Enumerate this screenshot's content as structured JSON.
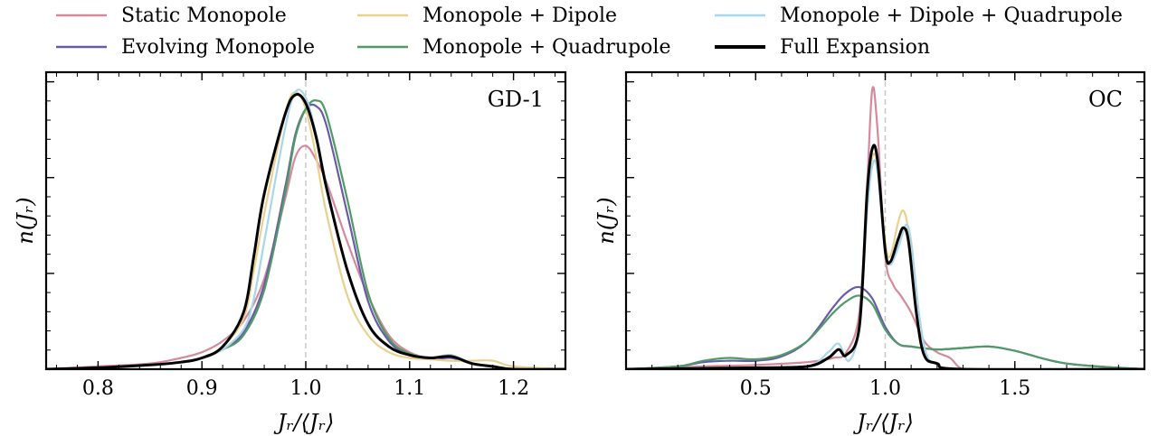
{
  "colors": {
    "static_monopole": "#d48a9b",
    "evolving_monopole": "#6a5aaa",
    "monopole_dipole": "#e8d08e",
    "monopole_quadrupole": "#4f9a66",
    "monopole_dipole_quadrupole": "#a8d6ea",
    "full_expansion": "#000000",
    "reference_line": "#c8c8c8"
  },
  "legend": [
    "Static Monopole",
    "Evolving Monopole",
    "Monopole + Dipole",
    "Monopole + Quadrupole",
    "Monopole + Dipole + Quadrupole",
    "Full Expansion"
  ],
  "chart_data": [
    {
      "type": "line",
      "panel_label": "GD-1",
      "xlabel": "J_r/⟨J_r⟩",
      "ylabel": "n(J_r)",
      "xlim": [
        0.75,
        1.25
      ],
      "ylim": [
        0,
        1.05
      ],
      "xticks": [
        0.8,
        0.9,
        1.0,
        1.1,
        1.2
      ],
      "xtick_labels": [
        "0.8",
        "0.9",
        "1.0",
        "1.1",
        "1.2"
      ],
      "reference_x": 1.0,
      "series": [
        {
          "name": "Static Monopole",
          "x": [
            0.75,
            0.8,
            0.85,
            0.88,
            0.9,
            0.92,
            0.94,
            0.96,
            0.98,
            0.99,
            1.0,
            1.01,
            1.02,
            1.04,
            1.06,
            1.08,
            1.1,
            1.12,
            1.14,
            1.16,
            1.18,
            1.2,
            1.25
          ],
          "y": [
            0.0,
            0.01,
            0.02,
            0.04,
            0.06,
            0.1,
            0.17,
            0.32,
            0.6,
            0.75,
            0.79,
            0.74,
            0.66,
            0.45,
            0.26,
            0.12,
            0.06,
            0.04,
            0.05,
            0.02,
            0.01,
            0.0,
            0.0
          ]
        },
        {
          "name": "Evolving Monopole",
          "x": [
            0.75,
            0.8,
            0.85,
            0.88,
            0.9,
            0.92,
            0.94,
            0.96,
            0.98,
            0.99,
            1.0,
            1.01,
            1.02,
            1.04,
            1.06,
            1.08,
            1.1,
            1.12,
            1.14,
            1.16,
            1.18,
            1.2,
            1.25
          ],
          "y": [
            0.0,
            0.005,
            0.015,
            0.025,
            0.04,
            0.07,
            0.13,
            0.3,
            0.64,
            0.83,
            0.92,
            0.93,
            0.86,
            0.55,
            0.24,
            0.1,
            0.05,
            0.035,
            0.04,
            0.02,
            0.01,
            0.0,
            0.0
          ]
        },
        {
          "name": "Monopole + Dipole",
          "x": [
            0.75,
            0.8,
            0.85,
            0.88,
            0.9,
            0.92,
            0.94,
            0.95,
            0.96,
            0.98,
            0.99,
            1.0,
            1.01,
            1.02,
            1.04,
            1.06,
            1.08,
            1.1,
            1.12,
            1.14,
            1.16,
            1.18,
            1.2,
            1.25
          ],
          "y": [
            0.0,
            0.005,
            0.015,
            0.025,
            0.04,
            0.08,
            0.18,
            0.35,
            0.55,
            0.9,
            0.98,
            0.92,
            0.75,
            0.55,
            0.26,
            0.12,
            0.06,
            0.04,
            0.035,
            0.03,
            0.03,
            0.03,
            0.01,
            0.0
          ]
        },
        {
          "name": "Monopole + Quadrupole",
          "x": [
            0.75,
            0.8,
            0.85,
            0.88,
            0.9,
            0.92,
            0.94,
            0.96,
            0.98,
            0.99,
            1.0,
            1.01,
            1.02,
            1.04,
            1.06,
            1.08,
            1.1,
            1.12,
            1.14,
            1.16,
            1.18,
            1.2,
            1.25
          ],
          "y": [
            0.0,
            0.005,
            0.015,
            0.025,
            0.04,
            0.07,
            0.12,
            0.28,
            0.62,
            0.82,
            0.92,
            0.95,
            0.9,
            0.6,
            0.27,
            0.11,
            0.055,
            0.04,
            0.045,
            0.02,
            0.01,
            0.0,
            0.0
          ]
        },
        {
          "name": "Monopole + Dipole + Quadrupole",
          "x": [
            0.75,
            0.8,
            0.85,
            0.88,
            0.9,
            0.92,
            0.94,
            0.95,
            0.96,
            0.98,
            0.99,
            1.0,
            1.01,
            1.02,
            1.04,
            1.06,
            1.08,
            1.1,
            1.12,
            1.14,
            1.16,
            1.18,
            1.2,
            1.25
          ],
          "y": [
            0.0,
            0.005,
            0.015,
            0.025,
            0.04,
            0.07,
            0.14,
            0.25,
            0.45,
            0.85,
            0.98,
            0.96,
            0.83,
            0.65,
            0.35,
            0.16,
            0.08,
            0.05,
            0.04,
            0.05,
            0.02,
            0.01,
            0.0,
            0.0
          ]
        },
        {
          "name": "Full Expansion",
          "x": [
            0.75,
            0.8,
            0.85,
            0.88,
            0.9,
            0.92,
            0.94,
            0.95,
            0.96,
            0.98,
            0.99,
            1.0,
            1.01,
            1.02,
            1.04,
            1.06,
            1.08,
            1.1,
            1.12,
            1.14,
            1.16,
            1.18,
            1.2,
            1.25
          ],
          "y": [
            0.0,
            0.005,
            0.015,
            0.025,
            0.04,
            0.08,
            0.2,
            0.4,
            0.62,
            0.9,
            0.97,
            0.94,
            0.82,
            0.64,
            0.35,
            0.16,
            0.08,
            0.05,
            0.04,
            0.045,
            0.02,
            0.01,
            0.0,
            0.0
          ]
        }
      ]
    },
    {
      "type": "line",
      "panel_label": "OC",
      "xlabel": "J_r/⟨J_r⟩",
      "ylabel": "n(J_r)",
      "xlim": [
        0.0,
        2.0
      ],
      "ylim": [
        0,
        1.05
      ],
      "xticks": [
        0.5,
        1.0,
        1.5
      ],
      "xtick_labels": [
        "0.5",
        "1.0",
        "1.5"
      ],
      "reference_x": 1.0,
      "series": [
        {
          "name": "Static Monopole",
          "x": [
            0.0,
            0.3,
            0.5,
            0.7,
            0.8,
            0.85,
            0.9,
            0.93,
            0.95,
            0.97,
            1.0,
            1.03,
            1.06,
            1.1,
            1.15,
            1.2,
            1.25,
            1.3,
            1.4,
            2.0
          ],
          "y": [
            0.0,
            0.01,
            0.015,
            0.025,
            0.04,
            0.06,
            0.2,
            0.65,
            0.99,
            0.85,
            0.4,
            0.3,
            0.26,
            0.2,
            0.1,
            0.06,
            0.04,
            0.0,
            0.0,
            0.0
          ]
        },
        {
          "name": "Evolving Monopole",
          "x": [
            0.0,
            0.2,
            0.3,
            0.4,
            0.5,
            0.6,
            0.7,
            0.8,
            0.85,
            0.9,
            0.95,
            1.0,
            1.05,
            1.1,
            1.2,
            1.3,
            1.4,
            1.5,
            1.7,
            2.0
          ],
          "y": [
            0.0,
            0.01,
            0.025,
            0.03,
            0.03,
            0.045,
            0.1,
            0.22,
            0.27,
            0.29,
            0.25,
            0.15,
            0.09,
            0.08,
            0.07,
            0.075,
            0.08,
            0.065,
            0.02,
            0.0
          ]
        },
        {
          "name": "Monopole + Dipole",
          "x": [
            0.0,
            0.5,
            0.7,
            0.78,
            0.82,
            0.85,
            0.9,
            0.93,
            0.95,
            0.97,
            1.0,
            1.02,
            1.05,
            1.07,
            1.09,
            1.12,
            1.15,
            1.2,
            1.3,
            2.0
          ],
          "y": [
            0.0,
            0.005,
            0.01,
            0.04,
            0.07,
            0.05,
            0.15,
            0.6,
            0.75,
            0.72,
            0.45,
            0.4,
            0.52,
            0.56,
            0.48,
            0.2,
            0.05,
            0.02,
            0.0,
            0.0
          ]
        },
        {
          "name": "Monopole + Quadrupole",
          "x": [
            0.0,
            0.2,
            0.3,
            0.4,
            0.5,
            0.6,
            0.7,
            0.8,
            0.85,
            0.9,
            0.95,
            1.0,
            1.05,
            1.1,
            1.2,
            1.3,
            1.4,
            1.5,
            1.7,
            2.0
          ],
          "y": [
            0.0,
            0.01,
            0.03,
            0.04,
            0.035,
            0.05,
            0.1,
            0.2,
            0.24,
            0.26,
            0.23,
            0.14,
            0.09,
            0.08,
            0.07,
            0.075,
            0.08,
            0.065,
            0.02,
            0.0
          ]
        },
        {
          "name": "Monopole + Dipole + Quadrupole",
          "x": [
            0.0,
            0.5,
            0.7,
            0.78,
            0.82,
            0.86,
            0.9,
            0.93,
            0.95,
            0.97,
            1.0,
            1.02,
            1.05,
            1.08,
            1.1,
            1.13,
            1.16,
            1.2,
            1.3,
            2.0
          ],
          "y": [
            0.0,
            0.005,
            0.01,
            0.06,
            0.09,
            0.03,
            0.15,
            0.55,
            0.72,
            0.7,
            0.42,
            0.37,
            0.43,
            0.51,
            0.45,
            0.2,
            0.05,
            0.02,
            0.0,
            0.0
          ]
        },
        {
          "name": "Full Expansion",
          "x": [
            0.0,
            0.5,
            0.7,
            0.78,
            0.82,
            0.85,
            0.9,
            0.93,
            0.95,
            0.97,
            1.0,
            1.02,
            1.05,
            1.07,
            1.09,
            1.12,
            1.15,
            1.2,
            1.3,
            2.0
          ],
          "y": [
            0.0,
            0.005,
            0.01,
            0.04,
            0.07,
            0.05,
            0.15,
            0.62,
            0.78,
            0.74,
            0.42,
            0.38,
            0.46,
            0.5,
            0.45,
            0.2,
            0.05,
            0.02,
            0.0,
            0.0
          ]
        }
      ]
    }
  ]
}
